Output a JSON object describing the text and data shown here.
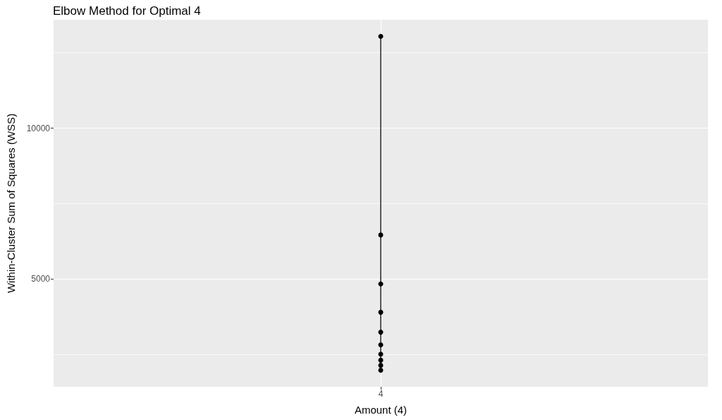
{
  "chart_data": {
    "type": "line",
    "title": "Elbow Method for Optimal 4",
    "xlabel": "Amount (4)",
    "ylabel": "Within-Cluster Sum of Squares (WSS)",
    "categories": [
      "4"
    ],
    "series": [
      {
        "x": [
          "4",
          "4",
          "4",
          "4",
          "4",
          "4",
          "4",
          "4",
          "4",
          "4"
        ],
        "values": [
          13040,
          6460,
          4840,
          3900,
          3240,
          2820,
          2510,
          2310,
          2140,
          1980
        ],
        "color": "#000000"
      }
    ],
    "ylim": [
      1430,
      13590
    ],
    "yticks": [
      {
        "value": 2500,
        "label": null
      },
      5000,
      {
        "value": 7500,
        "label": null
      },
      10000,
      {
        "value": 12500,
        "label": null
      }
    ],
    "grid": true,
    "marker": "circle",
    "line_style": "solid"
  }
}
